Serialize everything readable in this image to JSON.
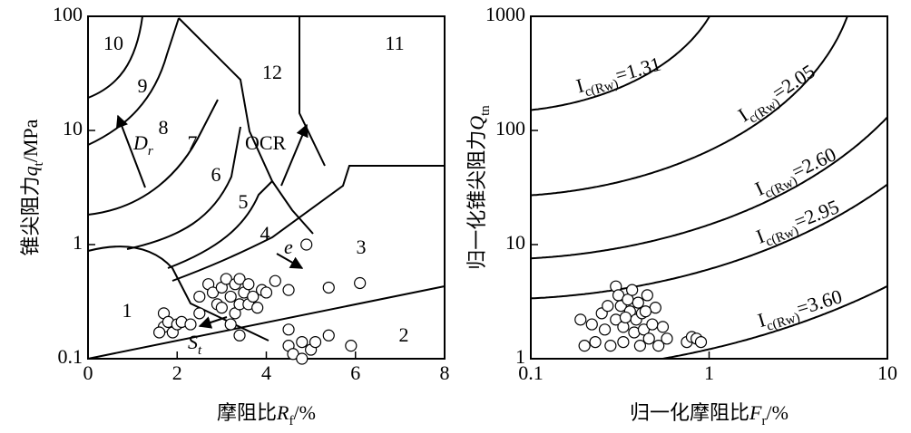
{
  "chart_data": [
    {
      "type": "scatter",
      "xlabel": {
        "text": "摩阻比",
        "var": "R",
        "sub": "f",
        "unit": "/%"
      },
      "ylabel": {
        "text": "锥尖阻力",
        "var": "q",
        "sub": "t",
        "unit": "/MPa"
      },
      "xlim": [
        0,
        8
      ],
      "ylim": [
        0.1,
        100
      ],
      "yscale": "log",
      "xticks": [
        0,
        2,
        4,
        6,
        8
      ],
      "yticks": [
        0.1,
        1,
        10,
        100
      ],
      "zones": [
        1,
        2,
        3,
        4,
        5,
        6,
        7,
        8,
        9,
        10,
        11,
        12
      ],
      "annotations": [
        {
          "text": "D",
          "sub": "r"
        },
        {
          "text": "OCR"
        },
        {
          "text": "e"
        },
        {
          "text": "S",
          "sub": "t"
        }
      ],
      "series": [
        {
          "color": "#000000",
          "x": [
            1.7,
            1.7,
            1.8,
            1.9,
            2.0,
            2.1,
            2.3,
            1.6,
            2.5,
            2.5,
            2.7,
            2.8,
            2.9,
            3.0,
            3.0,
            3.1,
            3.2,
            3.3,
            3.3,
            3.4,
            3.4,
            3.5,
            3.6,
            3.6,
            3.7,
            3.8,
            3.9,
            4.0,
            3.2,
            4.2,
            4.5,
            4.9,
            5.4,
            6.1,
            4.5,
            4.5,
            4.6,
            4.8,
            4.8,
            5.0,
            5.1,
            5.4,
            5.9,
            3.4
          ],
          "values": [
            0.25,
            0.19,
            0.21,
            0.17,
            0.2,
            0.21,
            0.2,
            0.17,
            0.25,
            0.35,
            0.45,
            0.38,
            0.3,
            0.42,
            0.28,
            0.5,
            0.35,
            0.45,
            0.25,
            0.3,
            0.5,
            0.38,
            0.3,
            0.45,
            0.35,
            0.28,
            0.4,
            0.38,
            0.2,
            0.48,
            0.4,
            1.0,
            0.42,
            0.46,
            0.18,
            0.13,
            0.11,
            0.14,
            0.1,
            0.12,
            0.14,
            0.16,
            0.13,
            0.16
          ]
        }
      ]
    },
    {
      "type": "scatter",
      "xlabel": {
        "text": "归一化摩阻比",
        "var": "F",
        "sub": "r",
        "unit": "/%"
      },
      "ylabel": {
        "text": "归一化锥尖阻力",
        "var": "Q",
        "sub": "tn",
        "unit": ""
      },
      "xlim": [
        0.1,
        10
      ],
      "ylim": [
        1,
        1000
      ],
      "xscale": "log",
      "yscale": "log",
      "xticks": [
        0.1,
        1,
        10
      ],
      "yticks": [
        1,
        10,
        100,
        1000
      ],
      "contours": {
        "symbol": "I",
        "sub": "c(Rw)",
        "relation": "=",
        "values": [
          1.31,
          2.05,
          2.6,
          2.95,
          3.6
        ],
        "value_labels": [
          "1.31",
          "2.05",
          "2.60",
          "2.95",
          "3.60"
        ]
      },
      "series": [
        {
          "color": "#000000",
          "x": [
            0.19,
            0.2,
            0.22,
            0.23,
            0.25,
            0.26,
            0.28,
            0.3,
            0.3,
            0.31,
            0.32,
            0.33,
            0.33,
            0.35,
            0.36,
            0.37,
            0.38,
            0.39,
            0.4,
            0.41,
            0.42,
            0.43,
            0.45,
            0.46,
            0.48,
            0.5,
            0.52,
            0.55,
            0.58,
            0.75,
            0.8,
            0.85,
            0.9,
            0.27,
            0.34,
            0.44
          ],
          "values": [
            2.2,
            1.3,
            2.0,
            1.4,
            2.5,
            1.8,
            1.3,
            4.3,
            2.2,
            3.6,
            2.9,
            1.9,
            1.4,
            3.3,
            2.6,
            4.0,
            1.7,
            2.2,
            3.1,
            1.3,
            2.5,
            1.8,
            3.6,
            1.5,
            2.0,
            2.8,
            1.3,
            1.9,
            1.5,
            1.4,
            1.55,
            1.5,
            1.4,
            2.9,
            2.3,
            2.6
          ]
        }
      ]
    }
  ]
}
